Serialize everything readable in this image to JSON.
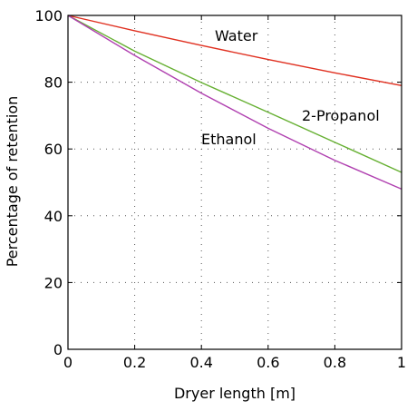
{
  "chart_data": {
    "type": "line",
    "title": "",
    "xlabel": "Dryer length [m]",
    "ylabel": "Percentage of retention",
    "xlim": [
      0,
      1
    ],
    "ylim": [
      0,
      100
    ],
    "xticks": [
      0,
      0.2,
      0.4,
      0.6,
      0.8,
      1
    ],
    "xtick_labels": [
      "0",
      "0.2",
      "0.4",
      "0.6",
      "0.8",
      "1"
    ],
    "yticks": [
      0,
      20,
      40,
      60,
      80,
      100
    ],
    "ytick_labels": [
      "0",
      "20",
      "40",
      "60",
      "80",
      "100"
    ],
    "grid": true,
    "grid_style": "dotted",
    "legend": "none (labels placed next to lines)",
    "series": [
      {
        "name": "Water",
        "color": "#e03020",
        "x": [
          0,
          0.2,
          0.4,
          0.6,
          0.8,
          1
        ],
        "y": [
          100,
          95.4,
          91.0,
          86.8,
          82.8,
          79.0
        ]
      },
      {
        "name": "2-Propanol",
        "color": "#66b032",
        "x": [
          0,
          0.2,
          0.4,
          0.6,
          0.8,
          1
        ],
        "y": [
          100,
          89.3,
          79.9,
          71.0,
          62.0,
          53.0
        ]
      },
      {
        "name": "Ethanol",
        "color": "#b040b0",
        "x": [
          0,
          0.2,
          0.4,
          0.6,
          0.8,
          1
        ],
        "y": [
          100,
          88.0,
          76.7,
          66.2,
          56.6,
          48.0
        ]
      }
    ]
  }
}
